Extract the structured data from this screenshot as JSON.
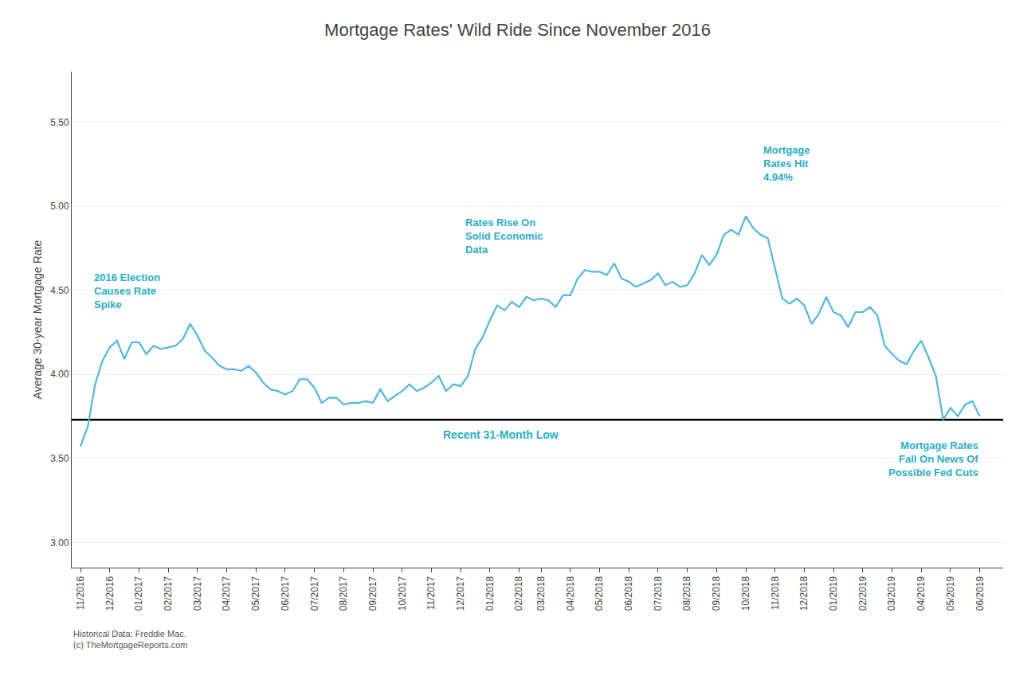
{
  "chart_data": {
    "type": "line",
    "title": "Mortgage Rates' Wild Ride Since November 2016",
    "ylabel": "Average 30-year Mortgage Rate",
    "categories": [
      "11/2016",
      null,
      null,
      null,
      "12/2016",
      null,
      null,
      null,
      "01/2017",
      null,
      null,
      null,
      "02/2017",
      null,
      null,
      null,
      "03/2017",
      null,
      null,
      null,
      "04/2017",
      null,
      null,
      null,
      "05/2017",
      null,
      null,
      null,
      "06/2017",
      null,
      null,
      null,
      "07/2017",
      null,
      null,
      null,
      "08/2017",
      null,
      null,
      null,
      "09/2017",
      null,
      null,
      null,
      "10/2017",
      null,
      null,
      null,
      "11/2017",
      null,
      null,
      null,
      "12/2017",
      null,
      null,
      null,
      "01/2018",
      null,
      null,
      null,
      "02/2018",
      null,
      null,
      "03/2018",
      null,
      null,
      null,
      "04/2018",
      null,
      null,
      null,
      "05/2018",
      null,
      null,
      null,
      "06/2018",
      null,
      null,
      null,
      "07/2018",
      null,
      null,
      null,
      "08/2018",
      null,
      null,
      null,
      "09/2018",
      null,
      null,
      null,
      "10/2018",
      null,
      null,
      null,
      "11/2018",
      null,
      null,
      null,
      "12/2018",
      null,
      null,
      null,
      "01/2019",
      null,
      null,
      null,
      "02/2019",
      null,
      null,
      null,
      "03/2019",
      null,
      null,
      null,
      "04/2019",
      null,
      null,
      null,
      "05/2019",
      null,
      null,
      null,
      "06/2019"
    ],
    "values": [
      3.57,
      3.69,
      3.94,
      4.08,
      4.16,
      4.2,
      4.09,
      4.19,
      4.19,
      4.12,
      4.17,
      4.15,
      4.16,
      4.17,
      4.21,
      4.3,
      4.23,
      4.14,
      4.1,
      4.05,
      4.03,
      4.03,
      4.02,
      4.05,
      4.01,
      3.95,
      3.91,
      3.9,
      3.88,
      3.9,
      3.97,
      3.97,
      3.92,
      3.83,
      3.86,
      3.86,
      3.82,
      3.83,
      3.83,
      3.84,
      3.83,
      3.91,
      3.84,
      3.87,
      3.9,
      3.94,
      3.9,
      3.92,
      3.95,
      3.99,
      3.9,
      3.94,
      3.93,
      3.99,
      4.15,
      4.22,
      4.32,
      4.41,
      4.38,
      4.43,
      4.4,
      4.46,
      4.44,
      4.45,
      4.44,
      4.4,
      4.47,
      4.47,
      4.57,
      4.62,
      4.61,
      4.61,
      4.59,
      4.66,
      4.57,
      4.55,
      4.52,
      4.54,
      4.56,
      4.6,
      4.53,
      4.55,
      4.52,
      4.53,
      4.6,
      4.71,
      4.65,
      4.71,
      4.83,
      4.86,
      4.83,
      4.94,
      4.87,
      4.83,
      4.81,
      4.63,
      4.45,
      4.42,
      4.45,
      4.41,
      4.3,
      4.36,
      4.46,
      4.37,
      4.35,
      4.28,
      4.37,
      4.37,
      4.4,
      4.35,
      4.17,
      4.12,
      4.08,
      4.06,
      4.14,
      4.2,
      4.1,
      3.99,
      3.73,
      3.8,
      3.75,
      3.82,
      3.84,
      3.75
    ],
    "color": "#4fb8e0",
    "ylim": [
      2.85,
      5.8
    ],
    "yticks": [
      {
        "value": 3.0,
        "label": "3.00"
      },
      {
        "value": 3.5,
        "label": "3.50"
      },
      {
        "value": 4.0,
        "label": "4.00"
      },
      {
        "value": 4.5,
        "label": "4.50"
      },
      {
        "value": 5.0,
        "label": "5.00"
      },
      {
        "value": 5.5,
        "label": "5.50"
      }
    ],
    "grid": true,
    "reference_line": {
      "value": 3.73,
      "color": "#000000"
    },
    "annotations": [
      {
        "text": "2016 Election\nCauses Rate\nSpike",
        "color": "#29adc7"
      },
      {
        "text": "Rates Rise On\nSolid Economic\nData",
        "color": "#29adc7"
      },
      {
        "text": "Mortgage\nRates Hit\n4.94%",
        "color": "#29adc7"
      },
      {
        "text": "Recent 31-Month Low",
        "color": "#29adc7"
      },
      {
        "text": "Mortgage Rates\nFall On News Of\nPossible Fed Cuts",
        "color": "#29adc7"
      }
    ],
    "source": "Historical Data: Freddie Mac.\n(c) TheMortgageReports.com"
  }
}
